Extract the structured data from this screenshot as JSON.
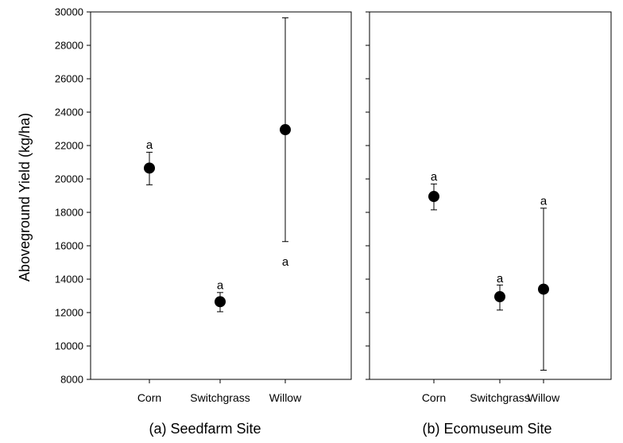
{
  "chart_data": {
    "type": "scatter",
    "ylabel": "Aboveground Yield (kg/ha)",
    "ylim": [
      8000,
      30000
    ],
    "yticks": [
      8000,
      10000,
      12000,
      14000,
      16000,
      18000,
      20000,
      22000,
      24000,
      26000,
      28000,
      30000
    ],
    "ytick_labels": [
      "8000",
      "10000",
      "12000",
      "14000",
      "16000",
      "18000",
      "20000",
      "22000",
      "24000",
      "26000",
      "28000",
      "30000"
    ],
    "categories": [
      "Corn",
      "Switchgrass",
      "Willow"
    ],
    "grid": false,
    "panels": [
      {
        "title": "(a) Seedfarm Site",
        "points": [
          {
            "category": "Corn",
            "value": 20650,
            "err_low": 19650,
            "err_high": 21600,
            "sig_label": "a",
            "sig_value": 22050
          },
          {
            "category": "Switchgrass",
            "value": 12650,
            "err_low": 12050,
            "err_high": 13200,
            "sig_label": "a",
            "sig_value": 13650
          },
          {
            "category": "Willow",
            "value": 22950,
            "err_low": 16250,
            "err_high": 29650,
            "sig_label": "a",
            "sig_value": 15050
          }
        ]
      },
      {
        "title": "(b) Ecomuseum Site",
        "points": [
          {
            "category": "Corn",
            "value": 18950,
            "err_low": 18150,
            "err_high": 19700,
            "sig_label": "a",
            "sig_value": 20150
          },
          {
            "category": "Switchgrass",
            "value": 12950,
            "err_low": 12150,
            "err_high": 13650,
            "sig_label": "a",
            "sig_value": 14050
          },
          {
            "category": "Willow",
            "value": 13400,
            "err_low": 8550,
            "err_high": 18250,
            "sig_label": "a",
            "sig_value": 18700
          }
        ]
      }
    ]
  }
}
